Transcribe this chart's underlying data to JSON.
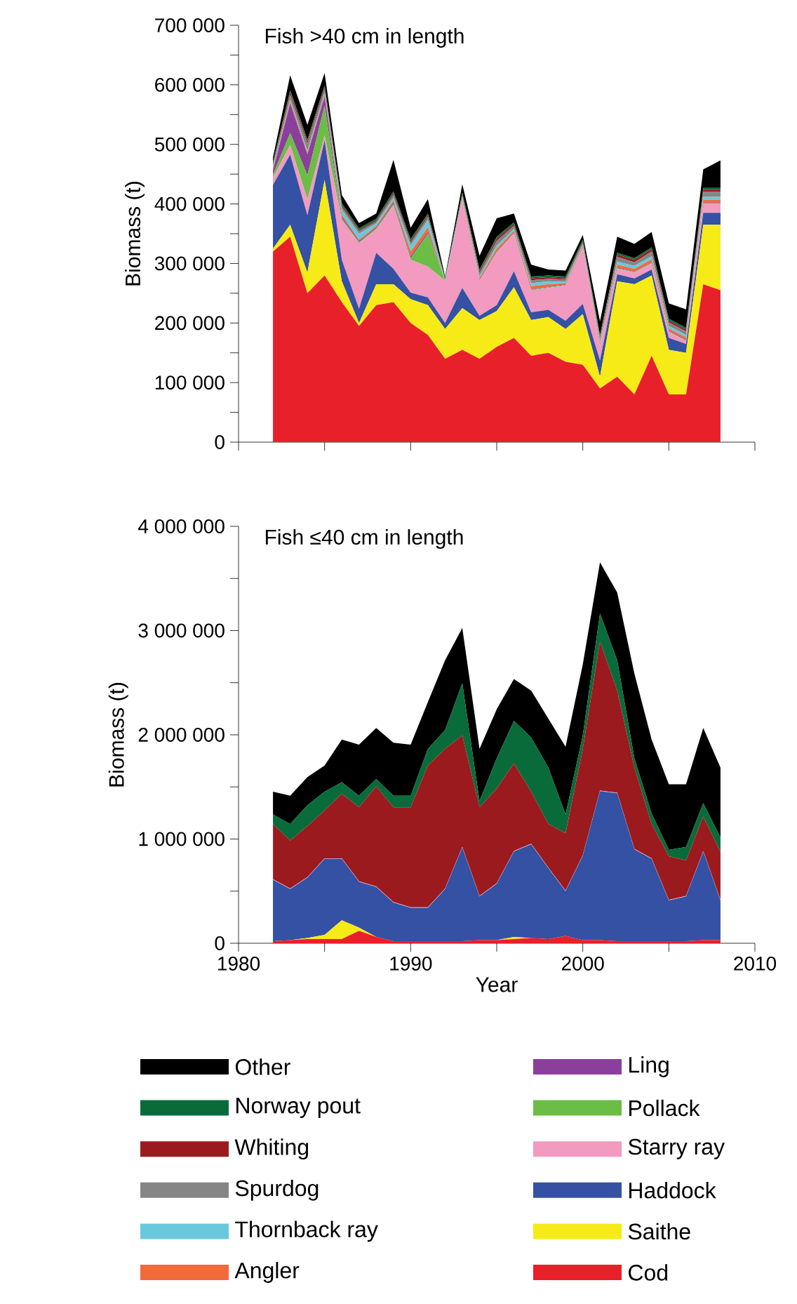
{
  "chart_data": [
    {
      "type": "area",
      "stacked": true,
      "title": "Fish >40 cm in length",
      "ylabel": "Biomass (t)",
      "tick_labels": "y",
      "legend": "bottom",
      "x": [
        1982,
        1983,
        1984,
        1985,
        1986,
        1987,
        1988,
        1989,
        1990,
        1991,
        1992,
        1993,
        1994,
        1995,
        1996,
        1997,
        1998,
        1999,
        2000,
        2001,
        2002,
        2003,
        2004,
        2005,
        2006,
        2007,
        2008
      ],
      "xlim": [
        1980,
        2010
      ],
      "xticks": [
        1980,
        1985,
        1990,
        1995,
        2000,
        2005,
        2010
      ],
      "ylim": [
        0,
        700000
      ],
      "yticks": [
        0,
        {
          "value": 50000,
          "label": null
        },
        {
          "value": 100000,
          "label": "100 000"
        },
        {
          "value": 150000,
          "label": null
        },
        {
          "value": 200000,
          "label": "200 000"
        },
        {
          "value": 250000,
          "label": null
        },
        {
          "value": 300000,
          "label": "300 000"
        },
        {
          "value": 350000,
          "label": null
        },
        {
          "value": 400000,
          "label": "400 000"
        },
        {
          "value": 450000,
          "label": null
        },
        {
          "value": 500000,
          "label": "500 000"
        },
        {
          "value": 550000,
          "label": null
        },
        {
          "value": 600000,
          "label": "600 000"
        },
        {
          "value": 650000,
          "label": null
        },
        {
          "value": 700000,
          "label": "700 000"
        }
      ],
      "series": [
        {
          "name": "Cod",
          "color": "#e8202a",
          "values": [
            320000,
            345000,
            250000,
            280000,
            235000,
            195000,
            230000,
            235000,
            200000,
            180000,
            140000,
            155000,
            140000,
            160000,
            175000,
            145000,
            150000,
            135000,
            130000,
            90000,
            110000,
            80000,
            145000,
            80000,
            80000,
            265000,
            255000
          ]
        },
        {
          "name": "Saithe",
          "color": "#f6eb16",
          "values": [
            5000,
            20000,
            35000,
            160000,
            35000,
            5000,
            35000,
            30000,
            40000,
            50000,
            50000,
            70000,
            65000,
            60000,
            85000,
            60000,
            60000,
            55000,
            85000,
            20000,
            160000,
            185000,
            135000,
            75000,
            70000,
            100000,
            110000
          ]
        },
        {
          "name": "Haddock",
          "color": "#3451a3",
          "values": [
            107000,
            118000,
            96000,
            67000,
            36000,
            24000,
            53000,
            26000,
            11000,
            13000,
            10000,
            34000,
            7000,
            10000,
            27000,
            13000,
            12000,
            14000,
            17000,
            27000,
            12000,
            10000,
            10000,
            20000,
            15000,
            20000,
            20000
          ]
        },
        {
          "name": "Starry ray",
          "color": "#f29ac0",
          "values": [
            12000,
            16000,
            27000,
            8000,
            67000,
            110000,
            39000,
            106000,
            55000,
            52000,
            71000,
            146000,
            59000,
            88000,
            63000,
            37000,
            37000,
            59000,
            94000,
            24000,
            9000,
            10000,
            10000,
            10000,
            5000,
            15000,
            15000
          ]
        },
        {
          "name": "Pollack",
          "color": "#6bbd45",
          "values": [
            5000,
            20000,
            40000,
            50000,
            3000,
            2000,
            2000,
            3000,
            3000,
            55000,
            0,
            1000,
            1000,
            1000,
            1000,
            1000,
            1000,
            1000,
            1000,
            1000,
            1000,
            1000,
            1000,
            1000,
            1000,
            1000,
            1000
          ]
        },
        {
          "name": "Ling",
          "color": "#8a3f9c",
          "values": [
            8000,
            50000,
            35000,
            15000,
            3000,
            2000,
            2000,
            3000,
            3000,
            3000,
            0,
            1000,
            1000,
            1000,
            1000,
            1000,
            1000,
            1000,
            1000,
            1000,
            1000,
            1000,
            1000,
            1000,
            1000,
            1000,
            1000
          ]
        },
        {
          "name": "Angler",
          "color": "#f26a3a",
          "values": [
            2000,
            3000,
            3000,
            3000,
            3000,
            2000,
            2000,
            3000,
            8000,
            8000,
            0,
            2000,
            3000,
            5000,
            3000,
            5000,
            4000,
            2000,
            2000,
            3000,
            5000,
            4000,
            5000,
            4000,
            4000,
            5000,
            5000
          ]
        },
        {
          "name": "Thornback ray",
          "color": "#6ac8dc",
          "values": [
            3000,
            3000,
            3000,
            3000,
            8000,
            10000,
            4000,
            4000,
            10000,
            12000,
            1000,
            2000,
            3000,
            5000,
            3000,
            5000,
            5000,
            2000,
            2000,
            3000,
            5000,
            5000,
            5000,
            4000,
            4000,
            5000,
            5000
          ]
        },
        {
          "name": "Spurdog",
          "color": "#858585",
          "values": [
            3000,
            8000,
            12000,
            6000,
            5000,
            4000,
            3000,
            5000,
            5000,
            5000,
            1000,
            3000,
            5000,
            8000,
            5000,
            5000,
            4000,
            4000,
            3000,
            5000,
            8000,
            6000,
            8000,
            6000,
            6000,
            8000,
            8000
          ]
        },
        {
          "name": "Whiting",
          "color": "#9b1a1e",
          "values": [
            2000,
            5000,
            4000,
            4000,
            3000,
            2000,
            2000,
            3000,
            3000,
            3000,
            0,
            2000,
            3000,
            4000,
            3000,
            3000,
            3000,
            2000,
            2000,
            3000,
            4000,
            4000,
            4000,
            3000,
            3000,
            4000,
            4000
          ]
        },
        {
          "name": "Norway pout",
          "color": "#0a6b3a",
          "values": [
            3000,
            3000,
            3000,
            3000,
            3000,
            3000,
            3000,
            3000,
            3000,
            3000,
            3000,
            3000,
            3000,
            3000,
            3000,
            3000,
            3000,
            3000,
            3000,
            3000,
            3000,
            3000,
            3000,
            3000,
            3000,
            3000,
            3000
          ]
        },
        {
          "name": "Other",
          "color": "#000000",
          "values": [
            8000,
            25000,
            25000,
            21000,
            14000,
            9000,
            9000,
            53000,
            19000,
            24000,
            2000,
            14000,
            23000,
            31000,
            15000,
            20000,
            10000,
            10000,
            8000,
            23000,
            27000,
            24000,
            26000,
            26000,
            31000,
            31000,
            46000
          ]
        }
      ]
    },
    {
      "type": "area",
      "stacked": true,
      "title": "Fish ≤40 cm in length",
      "ylabel": "Biomass (t)",
      "xlabel": "Year",
      "x": [
        1982,
        1983,
        1984,
        1985,
        1986,
        1987,
        1988,
        1989,
        1990,
        1991,
        1992,
        1993,
        1994,
        1995,
        1996,
        1997,
        1998,
        1999,
        2000,
        2001,
        2002,
        2003,
        2004,
        2005,
        2006,
        2007,
        2008
      ],
      "xlim": [
        1980,
        2010
      ],
      "xticks": [
        1980,
        {
          "value": 1985,
          "label": null
        },
        1990,
        {
          "value": 1995,
          "label": null
        },
        2000,
        {
          "value": 2005,
          "label": null
        },
        2010
      ],
      "ylim": [
        0,
        4000000
      ],
      "yticks": [
        0,
        {
          "value": 500000,
          "label": null
        },
        {
          "value": 1000000,
          "label": "1 000 000"
        },
        {
          "value": 1500000,
          "label": null
        },
        {
          "value": 2000000,
          "label": "2 000 000"
        },
        {
          "value": 2500000,
          "label": null
        },
        {
          "value": 3000000,
          "label": "3 000 000"
        },
        {
          "value": 3500000,
          "label": null
        },
        {
          "value": 4000000,
          "label": "4 000 000"
        }
      ],
      "series": [
        {
          "color": "#e8202a",
          "values": [
            20000,
            30000,
            40000,
            40000,
            40000,
            120000,
            60000,
            20000,
            20000,
            20000,
            20000,
            20000,
            30000,
            30000,
            40000,
            50000,
            40000,
            70000,
            30000,
            30000,
            20000,
            20000,
            20000,
            20000,
            20000,
            30000,
            30000
          ]
        },
        {
          "color": "#f6eb16",
          "values": [
            0,
            0,
            10000,
            40000,
            180000,
            30000,
            0,
            0,
            0,
            0,
            0,
            0,
            0,
            0,
            20000,
            0,
            0,
            0,
            0,
            0,
            0,
            0,
            0,
            0,
            0,
            0,
            0
          ]
        },
        {
          "color": "#3451a3",
          "values": [
            590000,
            490000,
            580000,
            730000,
            590000,
            440000,
            480000,
            370000,
            320000,
            320000,
            500000,
            900000,
            420000,
            540000,
            820000,
            900000,
            680000,
            430000,
            810000,
            1430000,
            1420000,
            880000,
            790000,
            390000,
            430000,
            850000,
            380000
          ]
        },
        {
          "color": "#f29ac0",
          "values": [
            5000,
            5000,
            5000,
            5000,
            5000,
            5000,
            5000,
            5000,
            5000,
            5000,
            5000,
            5000,
            5000,
            5000,
            5000,
            5000,
            5000,
            5000,
            5000,
            5000,
            5000,
            5000,
            5000,
            5000,
            5000,
            5000,
            5000
          ]
        },
        {
          "color": "#9b1a1e",
          "values": [
            530000,
            460000,
            490000,
            460000,
            620000,
            710000,
            960000,
            910000,
            960000,
            1360000,
            1340000,
            1070000,
            850000,
            910000,
            840000,
            500000,
            420000,
            550000,
            1020000,
            1430000,
            980000,
            780000,
            330000,
            420000,
            340000,
            330000,
            460000
          ]
        },
        {
          "color": "#0a6b3a",
          "values": [
            90000,
            160000,
            200000,
            180000,
            110000,
            110000,
            70000,
            110000,
            110000,
            160000,
            180000,
            500000,
            60000,
            290000,
            410000,
            520000,
            540000,
            180000,
            130000,
            270000,
            290000,
            90000,
            100000,
            60000,
            130000,
            130000,
            140000
          ]
        },
        {
          "color": "#000000",
          "values": [
            220000,
            270000,
            270000,
            250000,
            410000,
            490000,
            490000,
            510000,
            490000,
            450000,
            670000,
            530000,
            500000,
            470000,
            400000,
            450000,
            470000,
            650000,
            680000,
            490000,
            650000,
            810000,
            710000,
            630000,
            600000,
            720000,
            670000
          ]
        }
      ]
    }
  ]
}
